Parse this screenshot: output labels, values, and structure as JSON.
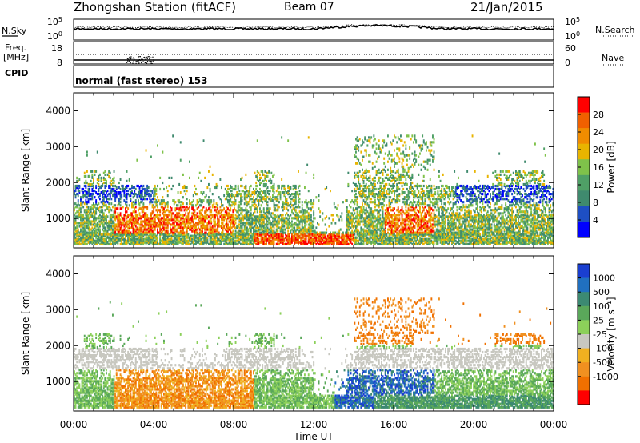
{
  "header": {
    "station": "Zhongshan Station (fitACF)",
    "beam": "Beam 07",
    "date": "21/Jan/2015"
  },
  "top_panels": {
    "nsky_label": "N.Sky",
    "nsky_ticks": [
      "10^5",
      "10^0"
    ],
    "nsearch_label": "N.Search",
    "nsearch_ticks": [
      "10^5",
      "10^0"
    ],
    "freq_label": "Freq.",
    "freq_unit": "[MHz]",
    "freq_ticks": [
      "18",
      "8"
    ],
    "nave_label": "Nave",
    "nave_ticks": [
      "60",
      "0"
    ],
    "cpid_label": "CPID",
    "cpid_text": "normal (fast stereo) 153"
  },
  "colors": {
    "power": [
      "#0000ff",
      "#1e4fc4",
      "#3f8a6e",
      "#4fa066",
      "#7fc24a",
      "#e8b400",
      "#f08c00",
      "#f06000",
      "#ff0000"
    ],
    "velocity": [
      "#1a3fd0",
      "#2070c0",
      "#3c8a72",
      "#5aa85a",
      "#8cd05a",
      "#c8c8c0",
      "#f0b020",
      "#f09020",
      "#f07000",
      "#ff0000"
    ]
  },
  "chart_data": [
    {
      "type": "heatmap",
      "name": "power-panel",
      "xlabel": "",
      "ylabel": "Slant Range [km]",
      "xlim": [
        0,
        24
      ],
      "ylim": [
        180,
        4500
      ],
      "y_ticks": [
        "1000",
        "2000",
        "3000",
        "4000"
      ],
      "colorbar_label": "Power [dB]",
      "colorbar_ticks": [
        "4",
        "8",
        "12",
        "16",
        "20",
        "24",
        "28"
      ],
      "colorbar_range": [
        0,
        32
      ]
    },
    {
      "type": "heatmap",
      "name": "velocity-panel",
      "xlabel": "Time UT",
      "ylabel": "Slant Range [km]",
      "xlim": [
        0,
        24
      ],
      "ylim": [
        180,
        4500
      ],
      "x_ticks": [
        "00:00",
        "04:00",
        "08:00",
        "12:00",
        "16:00",
        "20:00",
        "00:00"
      ],
      "y_ticks": [
        "1000",
        "2000",
        "3000",
        "4000"
      ],
      "colorbar_label": "Velocity [m s⁻¹]",
      "colorbar_ticks": [
        "1000",
        "500",
        "100",
        "25",
        "-25",
        "-100",
        "-500",
        "-1000"
      ]
    }
  ]
}
